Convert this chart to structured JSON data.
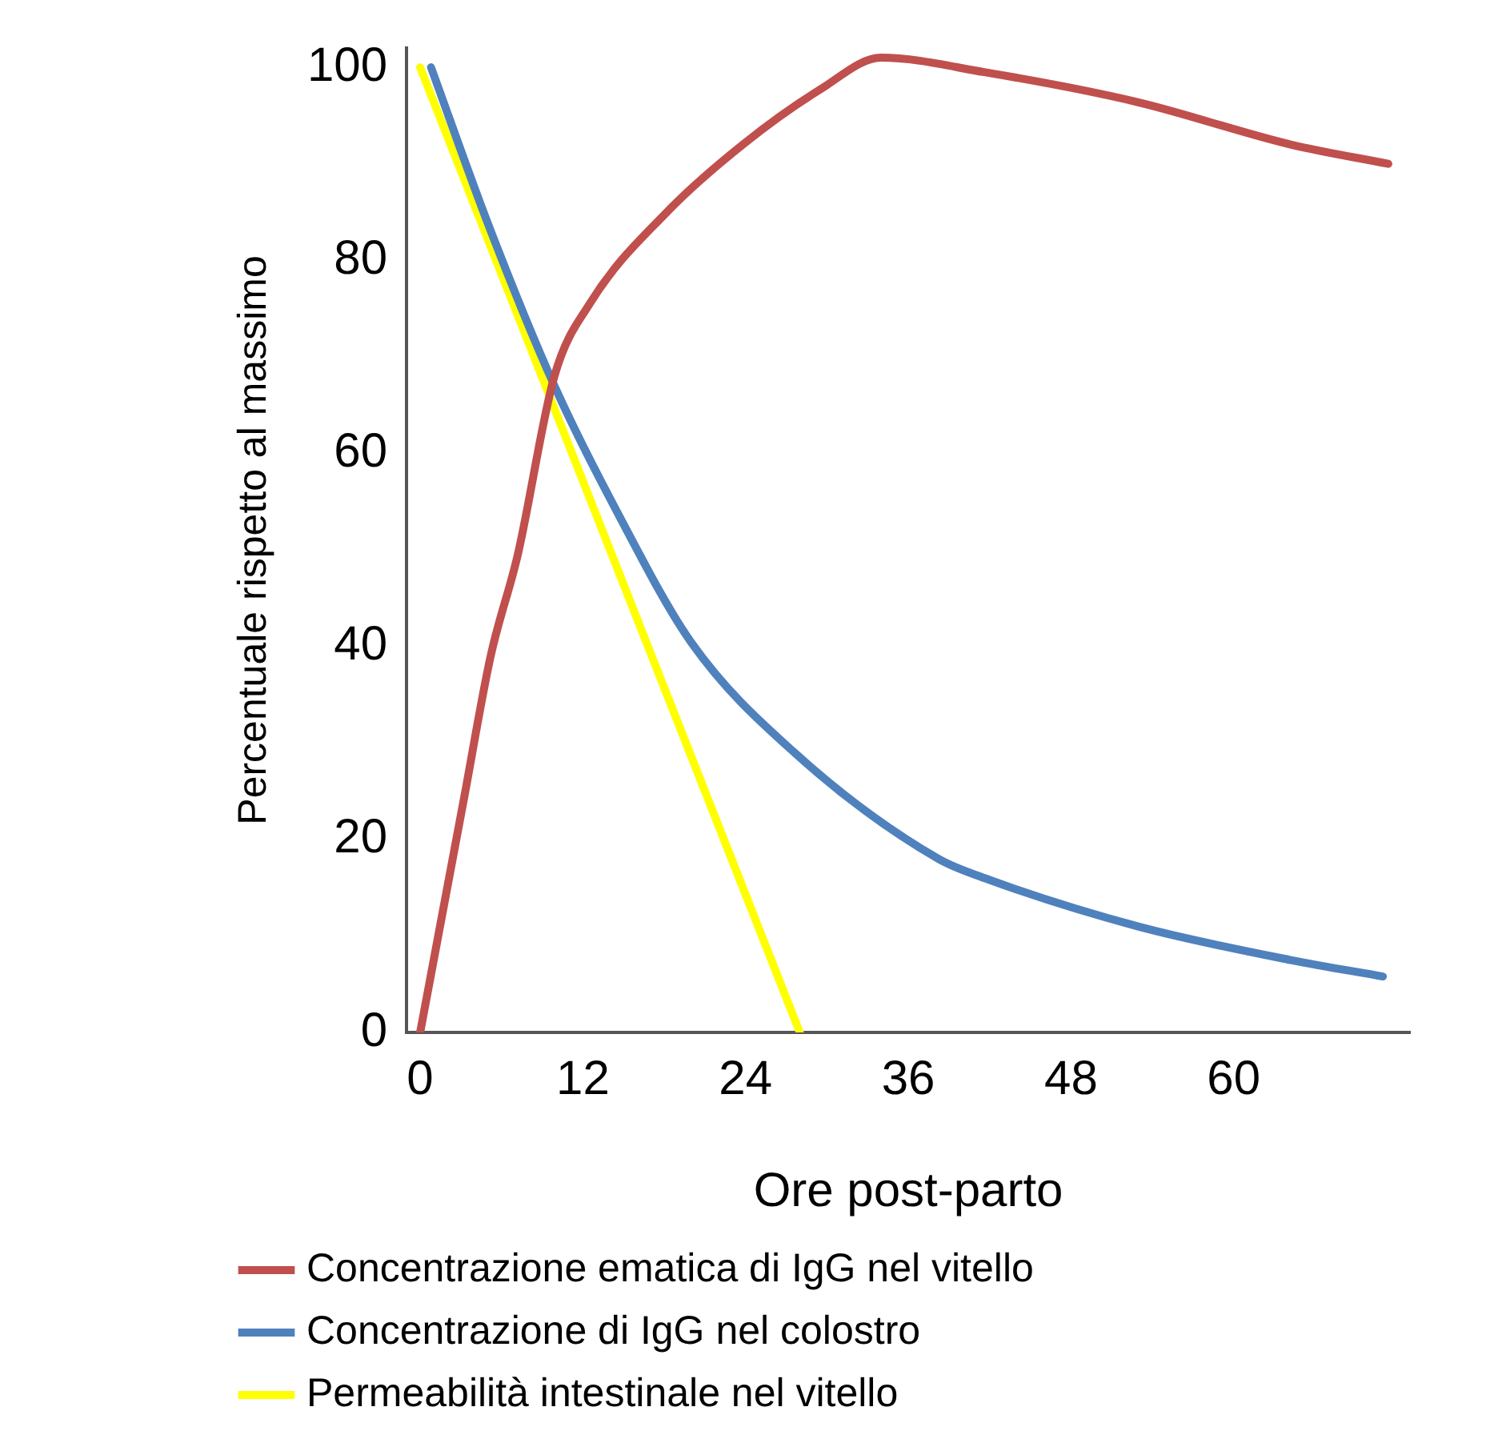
{
  "chart_data": {
    "type": "line",
    "xlabel": "Ore post-parto",
    "ylabel": "Percentuale rispetto al massimo",
    "xlim": [
      -1,
      73
    ],
    "xticks": [
      0,
      12,
      24,
      36,
      48,
      60
    ],
    "ylim": [
      0,
      102
    ],
    "yticks": [
      0,
      20,
      40,
      60,
      80,
      100
    ],
    "grid": false,
    "legend": "bottom",
    "marker": "none",
    "line_style": "solid",
    "series": [
      {
        "name": "Concentrazione ematica di IgG nel vitello",
        "color": "#c0504d",
        "x": [
          0,
          3.2,
          5.2,
          7.2,
          9.9,
          12.5,
          18.2,
          23.8,
          29.5,
          34,
          41.6,
          52.9,
          64.2,
          71.4
        ],
        "values": [
          0,
          24,
          39,
          49.5,
          68,
          75.5,
          85,
          92,
          97.7,
          101,
          99.5,
          96.4,
          92,
          90
        ]
      },
      {
        "name": "Concentrazione di IgG nel colostro",
        "color": "#4f81bd",
        "x": [
          0.8,
          5,
          9.9,
          14.5,
          20,
          27.6,
          38.2,
          41.6,
          52.9,
          64.2,
          71
        ],
        "values": [
          100,
          83.8,
          67,
          54,
          40.4,
          29,
          18,
          16,
          11,
          7.5,
          5.8
        ]
      },
      {
        "name": "Permeabilità intestinale nel vitello",
        "color": "#ffff00",
        "x": [
          0,
          28
        ],
        "values": [
          100,
          0
        ]
      }
    ]
  }
}
